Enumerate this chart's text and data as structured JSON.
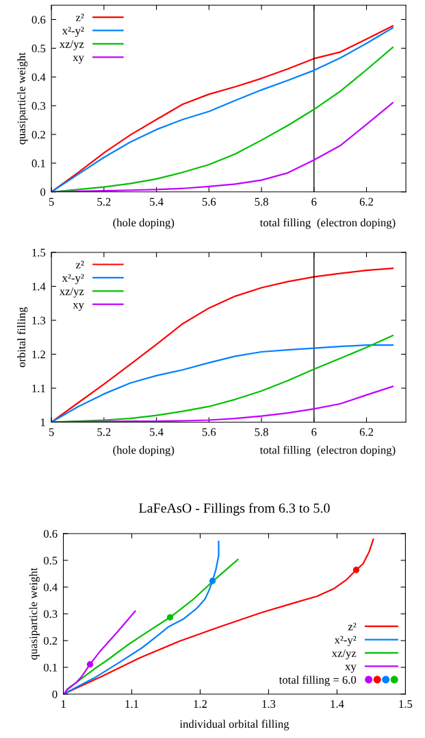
{
  "chart_data": [
    {
      "type": "line",
      "ylabel": "quasiparticle weight",
      "xlabel": "total filling",
      "annotations": [
        "(hole doping)",
        "(electron doping)"
      ],
      "x": [
        5,
        5.1,
        5.2,
        5.3,
        5.4,
        5.5,
        5.6,
        5.7,
        5.8,
        5.9,
        6,
        6.1,
        6.2,
        6.3
      ],
      "series": [
        {
          "name": "z²",
          "color": "#ff0000",
          "values": [
            0,
            0.066,
            0.136,
            0.198,
            0.252,
            0.305,
            0.34,
            0.366,
            0.395,
            0.428,
            0.464,
            0.487,
            0.532,
            0.578
          ]
        },
        {
          "name": "x²-y²",
          "color": "#0080ff",
          "values": [
            0,
            0.06,
            0.12,
            0.173,
            0.217,
            0.252,
            0.28,
            0.318,
            0.355,
            0.388,
            0.423,
            0.466,
            0.517,
            0.571
          ]
        },
        {
          "name": "xz/yz",
          "color": "#00c000",
          "values": [
            0,
            0.008,
            0.017,
            0.029,
            0.045,
            0.068,
            0.095,
            0.132,
            0.18,
            0.231,
            0.287,
            0.35,
            0.425,
            0.503
          ]
        },
        {
          "name": "xy",
          "color": "#c000ff",
          "values": [
            0,
            0.002,
            0.004,
            0.006,
            0.008,
            0.012,
            0.019,
            0.027,
            0.041,
            0.066,
            0.111,
            0.161,
            0.235,
            0.31
          ]
        }
      ],
      "xlim": [
        5,
        6.35
      ],
      "ylim": [
        0,
        0.65
      ],
      "xticks": [
        5,
        5.2,
        5.4,
        5.6,
        5.8,
        6,
        6.2
      ],
      "yticks": [
        0,
        0.1,
        0.2,
        0.3,
        0.4,
        0.5,
        0.6
      ],
      "ref_lines": [
        {
          "axis": "x",
          "value": 6,
          "color": "#000000"
        }
      ],
      "legend": "top left",
      "grid": false,
      "marker": "none",
      "line_style": "solid"
    },
    {
      "type": "line",
      "ylabel": "orbital filling",
      "xlabel": "total filling",
      "annotations": [
        "(hole doping)",
        "(electron doping)"
      ],
      "x": [
        5,
        5.1,
        5.2,
        5.3,
        5.4,
        5.5,
        5.6,
        5.7,
        5.8,
        5.9,
        6,
        6.1,
        6.2,
        6.3
      ],
      "series": [
        {
          "name": "z²",
          "color": "#ff0000",
          "values": [
            1,
            1.056,
            1.112,
            1.17,
            1.229,
            1.29,
            1.336,
            1.371,
            1.396,
            1.414,
            1.428,
            1.438,
            1.447,
            1.453
          ]
        },
        {
          "name": "x²-y²",
          "color": "#0080ff",
          "values": [
            1,
            1.045,
            1.083,
            1.115,
            1.137,
            1.154,
            1.175,
            1.194,
            1.207,
            1.213,
            1.218,
            1.223,
            1.227,
            1.227
          ]
        },
        {
          "name": "xz/yz",
          "color": "#00c000",
          "values": [
            1,
            1.003,
            1.006,
            1.011,
            1.02,
            1.032,
            1.046,
            1.067,
            1.092,
            1.122,
            1.156,
            1.188,
            1.22,
            1.255
          ]
        },
        {
          "name": "xy",
          "color": "#c000ff",
          "values": [
            1,
            1.001,
            1.002,
            1.003,
            1.003,
            1.004,
            1.006,
            1.011,
            1.018,
            1.027,
            1.039,
            1.054,
            1.08,
            1.105
          ]
        }
      ],
      "xlim": [
        5,
        6.35
      ],
      "ylim": [
        1,
        1.5
      ],
      "xticks": [
        5,
        5.2,
        5.4,
        5.6,
        5.8,
        6,
        6.2
      ],
      "yticks": [
        1,
        1.1,
        1.2,
        1.3,
        1.4,
        1.5
      ],
      "ref_lines": [
        {
          "axis": "x",
          "value": 6,
          "color": "#000000"
        }
      ],
      "legend": "top left",
      "grid": false,
      "marker": "none",
      "line_style": "solid"
    },
    {
      "type": "line",
      "title": "LaFeAsO - Fillings from 6.3 to 5.0",
      "ylabel": "quasiparticle weight",
      "xlabel": "individual orbital filling",
      "series": [
        {
          "name": "z²",
          "color": "#ff0000",
          "x": [
            1,
            1.056,
            1.112,
            1.17,
            1.229,
            1.29,
            1.336,
            1.371,
            1.396,
            1.414,
            1.428,
            1.438,
            1.447,
            1.453
          ],
          "values": [
            0,
            0.066,
            0.136,
            0.198,
            0.252,
            0.305,
            0.34,
            0.366,
            0.395,
            0.428,
            0.464,
            0.487,
            0.532,
            0.578
          ]
        },
        {
          "name": "x²-y²",
          "color": "#0080ff",
          "x": [
            1,
            1.045,
            1.083,
            1.115,
            1.137,
            1.154,
            1.175,
            1.194,
            1.207,
            1.213,
            1.218,
            1.223,
            1.227,
            1.227
          ],
          "values": [
            0,
            0.06,
            0.12,
            0.173,
            0.217,
            0.252,
            0.28,
            0.318,
            0.355,
            0.388,
            0.423,
            0.466,
            0.517,
            0.571
          ]
        },
        {
          "name": "xz/yz",
          "color": "#00c000",
          "x": [
            null,
            null,
            1.006,
            1.011,
            1.02,
            1.032,
            1.046,
            1.067,
            1.092,
            1.122,
            1.156,
            1.188,
            1.22,
            1.255
          ],
          "values": [
            null,
            null,
            0.017,
            0.029,
            0.045,
            0.068,
            0.095,
            0.132,
            0.18,
            0.231,
            0.287,
            0.35,
            0.425,
            0.503
          ]
        },
        {
          "name": "xy",
          "color": "#c000ff",
          "x": [
            1,
            1.001,
            1.002,
            1.003,
            1.003,
            1.004,
            1.006,
            1.011,
            1.018,
            1.027,
            1.039,
            1.054,
            1.08,
            1.105
          ],
          "values": [
            0,
            0.002,
            0.004,
            0.006,
            0.008,
            0.012,
            0.019,
            0.027,
            0.041,
            0.066,
            0.111,
            0.161,
            0.235,
            0.31
          ]
        },
        {
          "name": "total filling = 6.0",
          "type": "scatter",
          "marker": "circle",
          "colors": [
            "#c000ff",
            "#ff0000",
            "#0080ff",
            "#00c000"
          ],
          "x": [
            1.039,
            1.428,
            1.218,
            1.156
          ],
          "values": [
            0.111,
            0.464,
            0.423,
            0.287
          ]
        }
      ],
      "xlim": [
        1,
        1.5
      ],
      "ylim": [
        0,
        0.6
      ],
      "xticks": [
        1,
        1.1,
        1.2,
        1.3,
        1.4,
        1.5
      ],
      "yticks": [
        0,
        0.1,
        0.2,
        0.3,
        0.4,
        0.5,
        0.6
      ],
      "legend": "bottom right",
      "grid": false,
      "marker": "none",
      "line_style": "solid"
    }
  ]
}
